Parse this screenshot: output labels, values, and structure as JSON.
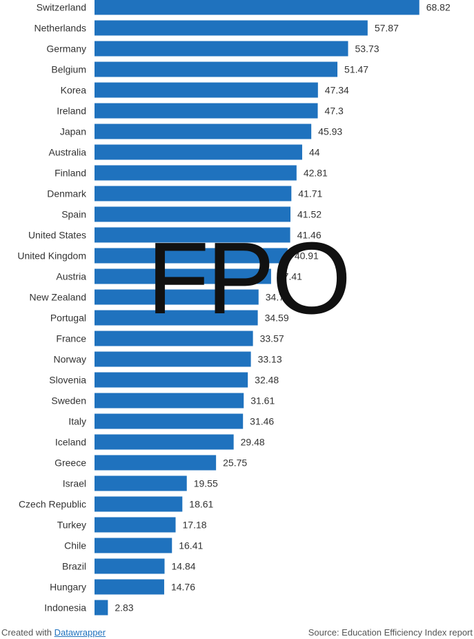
{
  "chart_data": {
    "type": "bar",
    "orientation": "horizontal",
    "categories": [
      "Switzerland",
      "Netherlands",
      "Germany",
      "Belgium",
      "Korea",
      "Ireland",
      "Japan",
      "Australia",
      "Finland",
      "Denmark",
      "Spain",
      "United States",
      "United Kingdom",
      "Austria",
      "New Zealand",
      "Portugal",
      "France",
      "Norway",
      "Slovenia",
      "Sweden",
      "Italy",
      "Iceland",
      "Greece",
      "Israel",
      "Czech Republic",
      "Turkey",
      "Chile",
      "Brazil",
      "Hungary",
      "Indonesia"
    ],
    "values": [
      68.82,
      57.87,
      53.73,
      51.47,
      47.34,
      47.3,
      45.93,
      44,
      42.81,
      41.71,
      41.52,
      41.46,
      40.91,
      37.41,
      34.76,
      34.59,
      33.57,
      33.13,
      32.48,
      31.61,
      31.46,
      29.48,
      25.75,
      19.55,
      18.61,
      17.18,
      16.41,
      14.84,
      14.76,
      2.83
    ],
    "value_labels": [
      "68.82",
      "57.87",
      "53.73",
      "51.47",
      "47.34",
      "47.3",
      "45.93",
      "44",
      "42.81",
      "41.71",
      "41.52",
      "41.46",
      "40.91",
      "37.41",
      "34.76",
      "34.59",
      "33.57",
      "33.13",
      "32.48",
      "31.61",
      "31.46",
      "29.48",
      "25.75",
      "19.55",
      "18.61",
      "17.18",
      "16.41",
      "14.84",
      "14.76",
      "2.83"
    ],
    "bar_color": "#1f72be",
    "grid": false,
    "legend": "none"
  },
  "watermark": "FPO",
  "footer": {
    "created_prefix": "Created with ",
    "created_link": "Datawrapper",
    "source": "Source: Education Efficiency Index report"
  }
}
